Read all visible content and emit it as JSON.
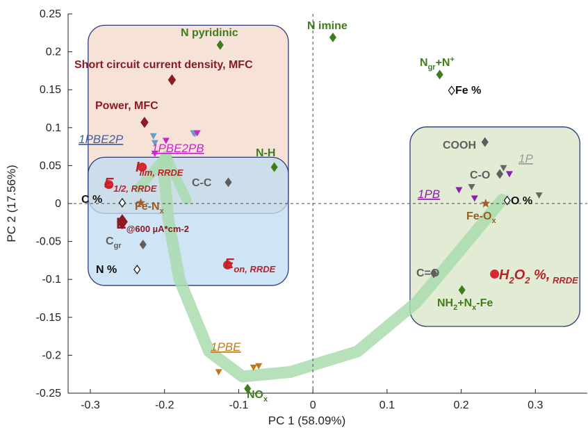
{
  "chart_data": {
    "type": "scatter",
    "xlabel": "PC 1 (58.09%)",
    "ylabel": "PC 2 (17.56%)",
    "xlim": [
      -0.33,
      0.37
    ],
    "ylim": [
      -0.25,
      0.25
    ],
    "xticks": [
      -0.3,
      -0.2,
      -0.1,
      0,
      0.1,
      0.2,
      0.3
    ],
    "yticks": [
      0.25,
      0.2,
      0.15,
      0.1,
      0.05,
      0,
      -0.05,
      -0.1,
      -0.15,
      -0.2,
      -0.25
    ],
    "xtick_labels": [
      "-0.3",
      "-0.2",
      "-0.1",
      "0",
      "0.1",
      "0.2",
      "0.3"
    ],
    "ytick_labels": [
      "0.25",
      "0.2",
      "0.15",
      "0.1",
      "0.05",
      "0",
      "-0.05",
      "-0.1",
      "-0.15",
      "-0.2",
      "-0.25"
    ],
    "reference_lines": {
      "x": 0,
      "y": 0,
      "style": "dashed"
    },
    "regions": [
      {
        "name": "1PBE2P-region",
        "fill": "#f6e2d6",
        "stroke": "#2d3a7a",
        "x": [
          -0.303,
          -0.033
        ],
        "y": [
          -0.013,
          0.235
        ]
      },
      {
        "name": "1PBE-region",
        "fill": "#c2dcf1",
        "stroke": "#2d3a7a",
        "x": [
          -0.303,
          -0.033
        ],
        "y": [
          -0.108,
          0.061
        ]
      },
      {
        "name": "1P-region",
        "fill": "#e2ecd4",
        "stroke": "#2d3a7a",
        "x": [
          0.131,
          0.36
        ],
        "y": [
          -0.162,
          0.101
        ]
      }
    ],
    "loadings": [
      {
        "label": "N pyridinic",
        "x": -0.125,
        "y": 0.209,
        "color": "#3d7d1c",
        "size": "small"
      },
      {
        "label": "N imine",
        "x": 0.027,
        "y": 0.219,
        "color": "#3d7d1c",
        "size": "small"
      },
      {
        "label": "N-H",
        "x": -0.052,
        "y": 0.048,
        "color": "#3d7d1c",
        "size": "small"
      },
      {
        "label": "NH2+Nx-Fe",
        "x": 0.201,
        "y": -0.114,
        "color": "#3d7d1c",
        "size": "small"
      },
      {
        "label": "NOx",
        "x": -0.088,
        "y": -0.244,
        "color": "#3d7d1c",
        "size": "small"
      },
      {
        "label": "Ngr+N+",
        "x": 0.171,
        "y": 0.17,
        "color": "#3d7d1c",
        "size": "small"
      },
      {
        "label": "Short circuit current density, MFC",
        "x": -0.19,
        "y": 0.163,
        "color": "#8b1a22",
        "size": "medium"
      },
      {
        "label": "Power, MFC",
        "x": -0.227,
        "y": 0.107,
        "color": "#8b1a22",
        "size": "medium"
      },
      {
        "label": "E@600 µA*cm-2",
        "x": -0.257,
        "y": -0.024,
        "color": "#8b1a22",
        "size": "large"
      },
      {
        "label": "COOH",
        "x": 0.232,
        "y": 0.081,
        "color": "#5e5e5e",
        "size": "small"
      },
      {
        "label": "C-O",
        "x": 0.252,
        "y": 0.039,
        "color": "#5e5e5e",
        "size": "small"
      },
      {
        "label": "C=O",
        "x": 0.163,
        "y": -0.092,
        "color": "#5e5e5e",
        "size": "small"
      },
      {
        "label": "C-C",
        "x": -0.114,
        "y": 0.028,
        "color": "#5e5e5e",
        "size": "small"
      },
      {
        "label": "Cgr",
        "x": -0.229,
        "y": -0.054,
        "color": "#5e5e5e",
        "size": "small"
      }
    ],
    "open_markers": [
      {
        "label": "C %",
        "x": -0.257,
        "y": 0.001
      },
      {
        "label": "N %",
        "x": -0.237,
        "y": -0.087
      },
      {
        "label": "Fe %",
        "x": 0.187,
        "y": 0.149
      },
      {
        "label": "O %",
        "x": 0.262,
        "y": 0.004
      }
    ],
    "circles": [
      {
        "label": "Ilim, RRDE",
        "x": -0.23,
        "y": 0.048
      },
      {
        "label": "E1/2, RRDE",
        "x": -0.275,
        "y": 0.025
      },
      {
        "label": "Eon, RRDE",
        "x": -0.115,
        "y": -0.081
      },
      {
        "label": "H2O2 %, RRDE",
        "x": 0.245,
        "y": -0.093
      }
    ],
    "stars": [
      {
        "label": "Fe-Nx",
        "x": -0.232,
        "y": 0.001
      },
      {
        "label": "Fe-Ox",
        "x": 0.233,
        "y": 0.0
      }
    ],
    "sample_groups": [
      {
        "label": "1PBE2P",
        "color": "#6b9cc6",
        "points": [
          [
            -0.215,
            0.089
          ],
          [
            -0.213,
            0.08
          ],
          [
            -0.161,
            0.093
          ],
          [
            -0.159,
            0.092
          ]
        ]
      },
      {
        "label": "1PBE2PB",
        "color": "#c928c9",
        "points": [
          [
            -0.198,
            0.083
          ],
          [
            -0.213,
            0.066
          ],
          [
            -0.156,
            0.093
          ]
        ]
      },
      {
        "label": "1PBE",
        "color": "#c07a1c",
        "points": [
          [
            -0.127,
            -0.222
          ],
          [
            -0.08,
            -0.216
          ],
          [
            -0.073,
            -0.214
          ]
        ]
      },
      {
        "label": "1P",
        "color": "#666666",
        "points": [
          [
            0.257,
            0.047
          ],
          [
            0.214,
            0.022
          ],
          [
            0.305,
            0.011
          ]
        ]
      },
      {
        "label": "1PB",
        "color": "#8b1fa8",
        "points": [
          [
            0.197,
            0.018
          ],
          [
            0.218,
            0.007
          ],
          [
            0.265,
            0.039
          ]
        ]
      }
    ],
    "trajectory_arrow": {
      "color": "#a9dcae",
      "path": [
        [
          0.255,
          0.005
        ],
        [
          0.2,
          -0.06
        ],
        [
          0.14,
          -0.13
        ],
        [
          0.06,
          -0.195
        ],
        [
          -0.03,
          -0.222
        ],
        [
          -0.095,
          -0.228
        ],
        [
          -0.14,
          -0.195
        ],
        [
          -0.18,
          -0.1
        ],
        [
          -0.195,
          -0.02
        ],
        [
          -0.2,
          0.035
        ],
        [
          -0.198,
          0.062
        ]
      ],
      "head_wings": [
        [
          -0.17,
          0.005
        ],
        [
          -0.235,
          0.02
        ]
      ],
      "direction": "from 1P to 1PBE2P"
    }
  }
}
